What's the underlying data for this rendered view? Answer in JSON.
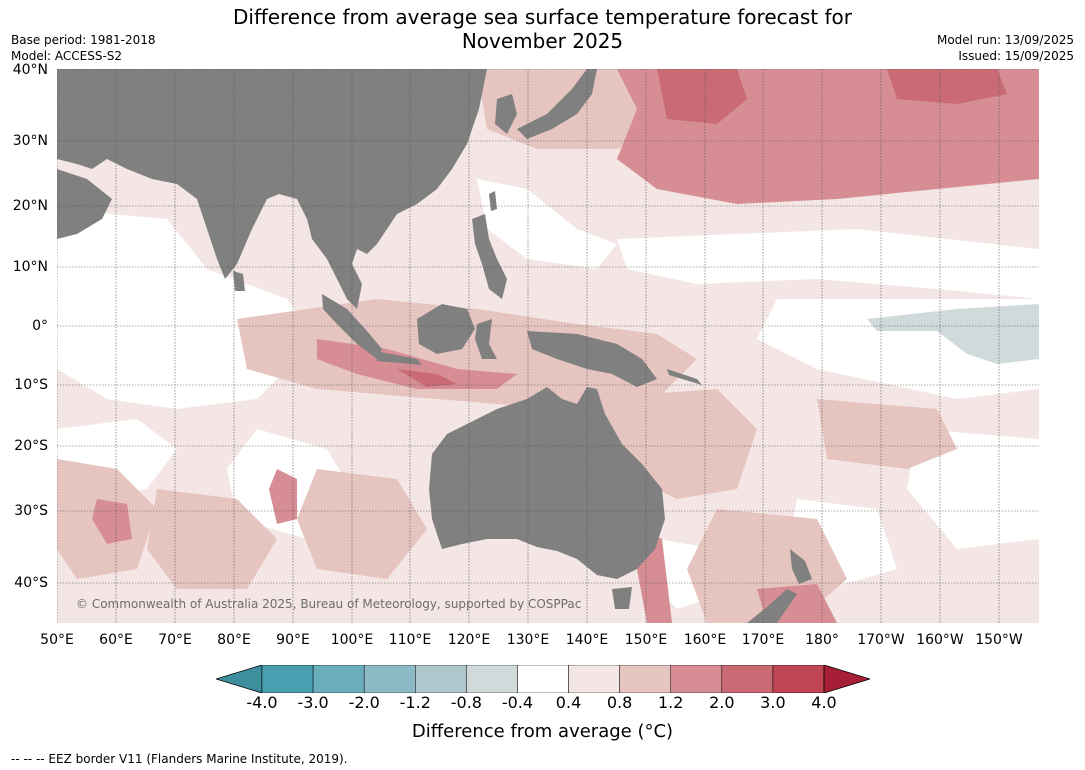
{
  "title_line1": "Difference from average sea surface temperature forecast for",
  "title_line2": "November 2025",
  "meta_left": {
    "base_period": "Base period: 1981-2018",
    "model": "Model: ACCESS-S2"
  },
  "meta_right": {
    "model_run": "Model run: 13/09/2025",
    "issued": "Issued: 15/09/2025"
  },
  "lat_labels": [
    "40°N",
    "30°N",
    "20°N",
    "10°N",
    "0°",
    "10°S",
    "20°S",
    "30°S",
    "40°S"
  ],
  "lon_labels": [
    "50°E",
    "60°E",
    "70°E",
    "80°E",
    "90°E",
    "100°E",
    "110°E",
    "120°E",
    "130°E",
    "140°E",
    "150°E",
    "160°E",
    "170°E",
    "180°",
    "170°W",
    "160°W",
    "150°W"
  ],
  "copyright": "© Commonwealth of Australia 2025, Bureau of Meteorology, supported by COSPPac",
  "colorbar": {
    "ticks": [
      "-4.0",
      "-3.0",
      "-2.0",
      "-1.2",
      "-0.8",
      "-0.4",
      "0.4",
      "0.8",
      "1.2",
      "2.0",
      "3.0",
      "4.0"
    ],
    "colors": [
      "#3e8f9d",
      "#479fb0",
      "#6aadbb",
      "#8bbac6",
      "#aec6cc",
      "#d1dadb",
      "#ffffff",
      "#f3e6e4",
      "#e6c4c0",
      "#d68d93",
      "#c96a74",
      "#bf4553",
      "#a61f36"
    ],
    "label": "Difference from average (°C)"
  },
  "footnote": "--  --  -- EEZ border V11 (Flanders Marine Institute, 2019).",
  "colors": {
    "land": "#808080",
    "ocean_warm_light": "#f3e6e4",
    "ocean_warm_mid": "#e6c4c0",
    "ocean_warm_strong": "#d68d93",
    "ocean_cool": "#d1dadb"
  }
}
